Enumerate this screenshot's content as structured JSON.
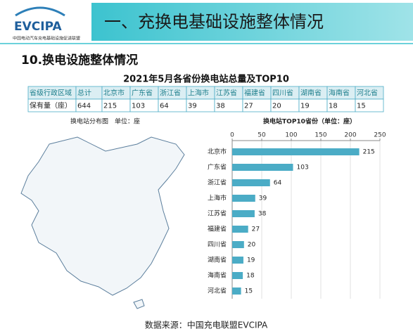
{
  "header": {
    "logo_text": "EVCIPA",
    "logo_subtitle": "中国电动汽车充电基础设施促进联盟",
    "title": "一、充换电基础设施整体情况"
  },
  "section_title": "10.换电设施整体情况",
  "main_title": "2021年5月各省份换电站总量及TOP10",
  "table": {
    "rows": [
      [
        "省级行政区域",
        "总计",
        "北京市",
        "广东省",
        "浙江省",
        "上海市",
        "江苏省",
        "福建省",
        "四川省",
        "湖南省",
        "海南省",
        "河北省"
      ],
      [
        "保有量（座）",
        644,
        215,
        103,
        64,
        39,
        38,
        27,
        20,
        19,
        18,
        15
      ]
    ]
  },
  "map_title": "换电站分布图　单位：座",
  "chart_data": {
    "type": "bar",
    "orientation": "horizontal",
    "title": "换电站TOP10省份（单位：座）",
    "categories": [
      "北京市",
      "广东省",
      "浙江省",
      "上海市",
      "江苏省",
      "福建省",
      "四川省",
      "湖南省",
      "海南省",
      "河北省"
    ],
    "values": [
      215,
      103,
      64,
      39,
      38,
      27,
      20,
      19,
      18,
      15
    ],
    "color": "#4bacc6",
    "xlim": [
      0,
      250
    ],
    "xticks": [
      0,
      50,
      100,
      150,
      200,
      250
    ],
    "grid": true
  },
  "source": "数据来源：中国充电联盟EVCIPA"
}
